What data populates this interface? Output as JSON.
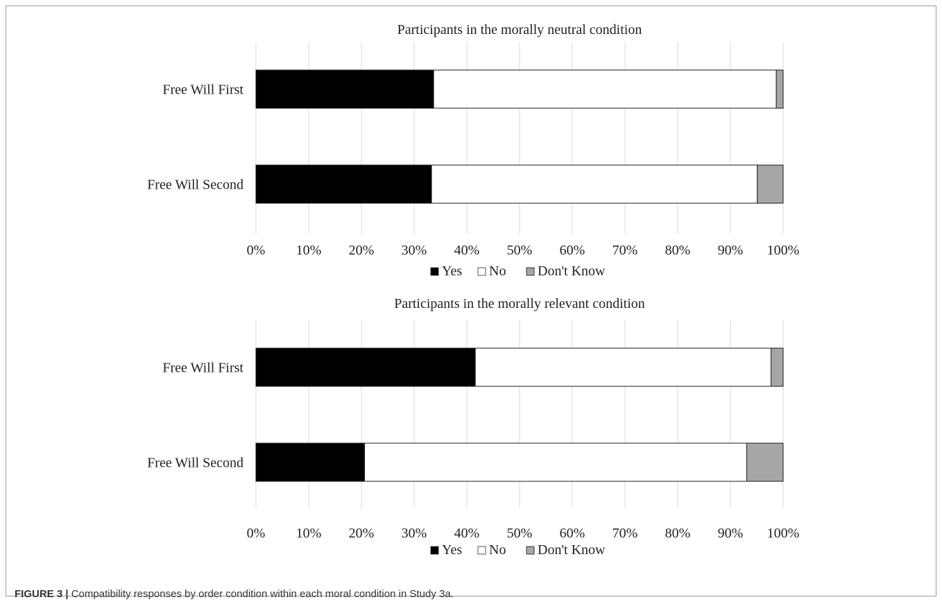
{
  "caption": {
    "label": "FIGURE 3 |",
    "text": " Compatibility responses by order condition within each moral condition in Study 3a."
  },
  "chart_data": [
    {
      "type": "bar",
      "orientation": "horizontal",
      "stacked": "percent",
      "title": "Participants in the morally neutral condition",
      "categories": [
        "Free Will First",
        "Free Will Second"
      ],
      "series": [
        {
          "name": "Yes",
          "color": "#000000",
          "values": [
            33.7,
            33.3
          ]
        },
        {
          "name": "No",
          "color": "#ffffff",
          "values": [
            65.0,
            61.8
          ]
        },
        {
          "name": "Don't Know",
          "color": "#a6a6a6",
          "values": [
            1.3,
            4.9
          ]
        }
      ],
      "xticks": [
        "0%",
        "10%",
        "20%",
        "30%",
        "40%",
        "50%",
        "60%",
        "70%",
        "80%",
        "90%",
        "100%"
      ],
      "xlim": [
        0,
        100
      ],
      "grid": true,
      "legend": "bottom"
    },
    {
      "type": "bar",
      "orientation": "horizontal",
      "stacked": "percent",
      "title": "Participants in the morally relevant condition",
      "categories": [
        "Free Will First",
        "Free Will Second"
      ],
      "series": [
        {
          "name": "Yes",
          "color": "#000000",
          "values": [
            41.6,
            20.6
          ]
        },
        {
          "name": "No",
          "color": "#ffffff",
          "values": [
            56.1,
            72.5
          ]
        },
        {
          "name": "Don't Know",
          "color": "#a6a6a6",
          "values": [
            2.3,
            6.9
          ]
        }
      ],
      "xticks": [
        "0%",
        "10%",
        "20%",
        "30%",
        "40%",
        "50%",
        "60%",
        "70%",
        "80%",
        "90%",
        "100%"
      ],
      "xlim": [
        0,
        100
      ],
      "grid": true,
      "legend": "bottom"
    }
  ]
}
